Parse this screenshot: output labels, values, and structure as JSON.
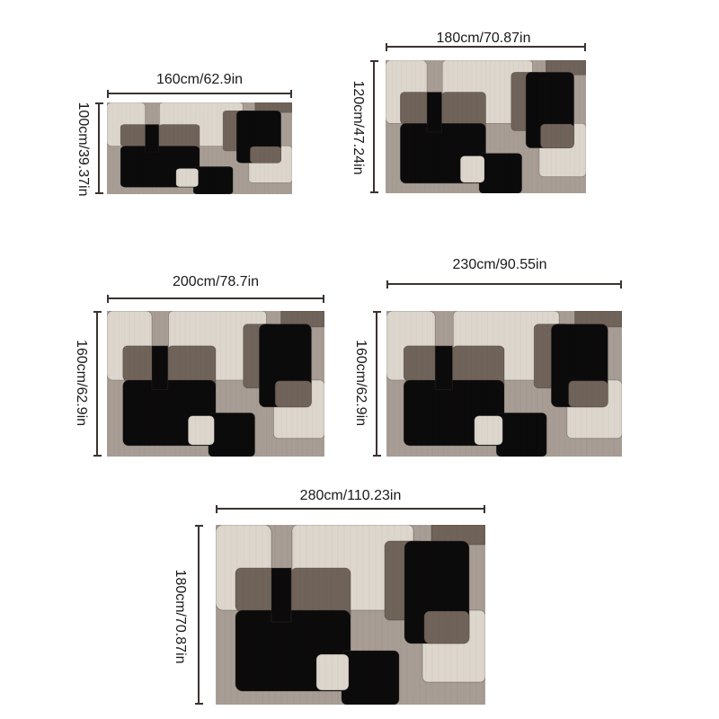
{
  "sizes": [
    {
      "width": "160cm/62.9in",
      "height": "100cm/39.37in"
    },
    {
      "width": "180cm/70.87in",
      "height": "120cm/47.24in"
    },
    {
      "width": "200cm/78.7in",
      "height": "160cm/62.9in"
    },
    {
      "width": "230cm/90.55in",
      "height": "160cm/62.9in"
    },
    {
      "width": "280cm/110.23in",
      "height": "180cm/70.87in"
    }
  ],
  "palette": {
    "black": "#0c0b0b",
    "dark_taupe": "#6f635a",
    "taupe": "#a79d94",
    "cream": "#ddd6cc",
    "outline": "#3a3330"
  }
}
